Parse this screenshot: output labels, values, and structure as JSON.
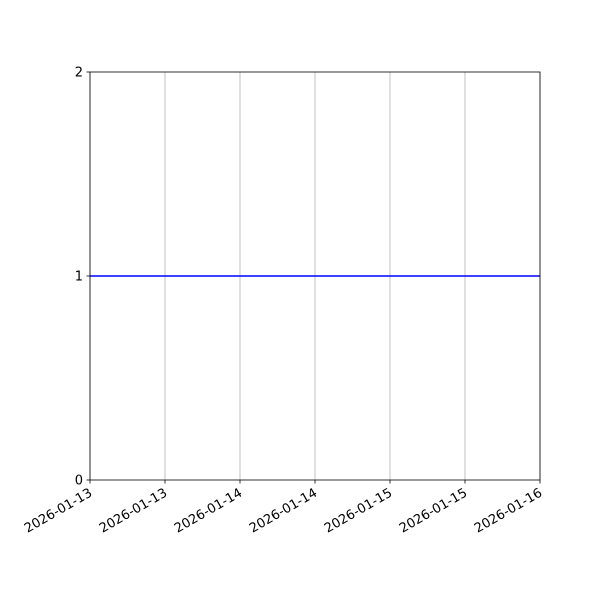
{
  "chart_data": {
    "type": "line",
    "title": "",
    "xlabel": "",
    "ylabel": "",
    "x_tick_labels": [
      "2026-01-13",
      "2026-01-13",
      "2026-01-14",
      "2026-01-14",
      "2026-01-15",
      "2026-01-15",
      "2026-01-16"
    ],
    "x_ticks": [
      "2026-01-13 00:00",
      "2026-01-13 12:00",
      "2026-01-14 00:00",
      "2026-01-14 12:00",
      "2026-01-15 00:00",
      "2026-01-15 12:00",
      "2026-01-16 00:00"
    ],
    "xlim": [
      "2026-01-13 00:00",
      "2026-01-16 00:00"
    ],
    "y_tick_labels": [
      "0",
      "1",
      "2"
    ],
    "ylim": [
      0,
      2
    ],
    "grid": "x-axis vertical lines only",
    "series": [
      {
        "x": [
          "2026-01-13 00:00",
          "2026-01-16 00:00"
        ],
        "y": [
          1,
          1
        ],
        "color": "#0000ff"
      }
    ],
    "colors": {
      "grid": "#b0b0b0",
      "line": "#0000ff"
    }
  }
}
